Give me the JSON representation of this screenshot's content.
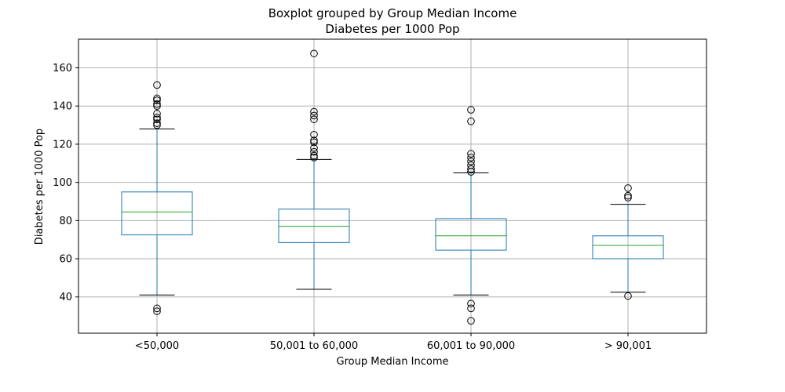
{
  "chart_data": {
    "type": "box",
    "title": "Boxplot grouped by Group Median Income",
    "subtitle": "Diabetes per 1000 Pop",
    "xlabel": "Group Median Income",
    "ylabel": "Diabetes per 1000 Pop",
    "ylim": [
      21,
      175
    ],
    "yticks": [
      40,
      60,
      80,
      100,
      120,
      140,
      160
    ],
    "grid": true,
    "colors": {
      "box": "#1f77b4",
      "median": "#2ca02c",
      "whisker_cap": "#000000",
      "grid": "#b0b0b0"
    },
    "categories": [
      "<50,000",
      "50,001 to 60,000",
      "60,001 to 90,000",
      "> 90,001"
    ],
    "boxes": [
      {
        "category": "<50,000",
        "whisker_low": 41,
        "q1": 72.5,
        "median": 84.5,
        "q3": 95,
        "whisker_high": 128,
        "outliers": [
          151,
          144,
          143,
          141,
          140,
          136,
          134,
          133,
          131,
          130,
          34,
          32.5
        ]
      },
      {
        "category": "50,001 to 60,000",
        "whisker_low": 44,
        "q1": 68.5,
        "median": 77,
        "q3": 86,
        "whisker_high": 112,
        "outliers": [
          167.5,
          137,
          135,
          133,
          125,
          122,
          121,
          118,
          116,
          114,
          113
        ]
      },
      {
        "category": "60,001 to 90,000",
        "whisker_low": 41,
        "q1": 64.5,
        "median": 72,
        "q3": 81,
        "whisker_high": 105,
        "outliers": [
          138,
          132,
          115,
          113,
          111,
          109,
          107,
          105.5,
          36.5,
          34,
          27.5
        ]
      },
      {
        "category": "> 90,001",
        "whisker_low": 42.5,
        "q1": 60,
        "median": 67,
        "q3": 72,
        "whisker_high": 88.5,
        "outliers": [
          97,
          93,
          92,
          40.5
        ]
      }
    ]
  }
}
